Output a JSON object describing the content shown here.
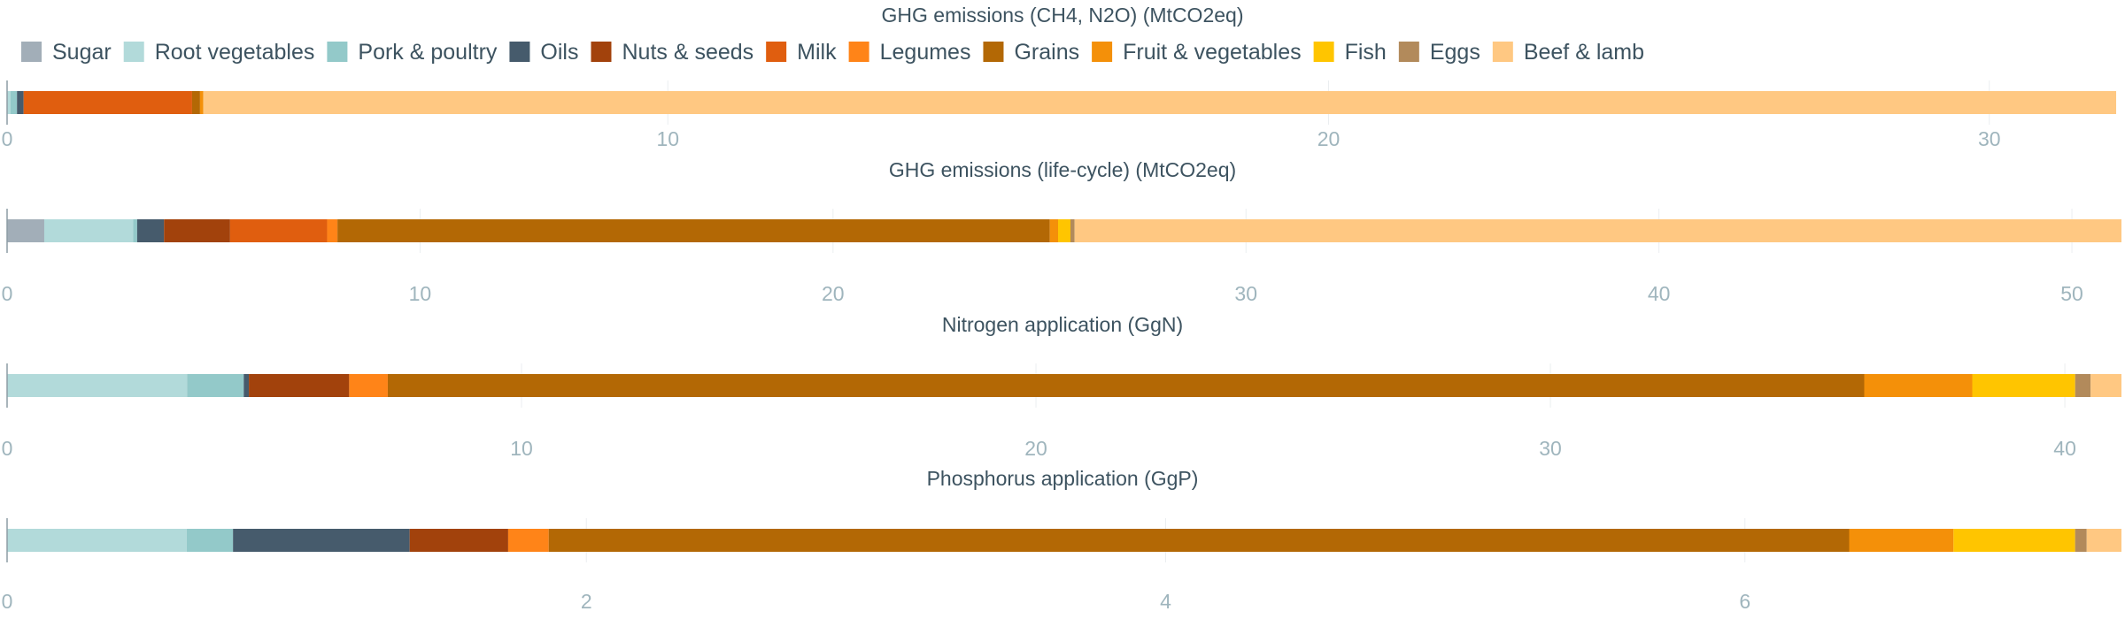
{
  "legend": [
    {
      "name": "Sugar",
      "color": "#a2aeb8"
    },
    {
      "name": "Root vegetables",
      "color": "#b2dada"
    },
    {
      "name": "Pork & poultry",
      "color": "#93c9c9"
    },
    {
      "name": "Oils",
      "color": "#465b6c"
    },
    {
      "name": "Nuts & seeds",
      "color": "#a2420c"
    },
    {
      "name": "Milk",
      "color": "#e05e0f"
    },
    {
      "name": "Legumes",
      "color": "#ff8418"
    },
    {
      "name": "Grains",
      "color": "#b36805"
    },
    {
      "name": "Fruit & vegetables",
      "color": "#f49009"
    },
    {
      "name": "Fish",
      "color": "#ffc500"
    },
    {
      "name": "Eggs",
      "color": "#b28a5b"
    },
    {
      "name": "Beef & lamb",
      "color": "#ffc882"
    }
  ],
  "chart_data": [
    {
      "type": "bar",
      "orientation": "horizontal",
      "stacked": true,
      "title": "GHG emissions (CH4, N2O) (MtCO2eq)",
      "xlim": [
        0,
        32
      ],
      "xticks": [
        0,
        10,
        20,
        30
      ],
      "grid": true,
      "segments": [
        {
          "name": "Sugar",
          "value": 0.0
        },
        {
          "name": "Root vegetables",
          "value": 0.05
        },
        {
          "name": "Pork & poultry",
          "value": 0.1
        },
        {
          "name": "Oils",
          "value": 0.1
        },
        {
          "name": "Nuts & seeds",
          "value": 0.0
        },
        {
          "name": "Milk",
          "value": 2.55
        },
        {
          "name": "Legumes",
          "value": 0.0
        },
        {
          "name": "Grains",
          "value": 0.12
        },
        {
          "name": "Fruit & vegetables",
          "value": 0.05
        },
        {
          "name": "Fish",
          "value": 0.0
        },
        {
          "name": "Eggs",
          "value": 0.0
        },
        {
          "name": "Beef & lamb",
          "value": 28.95
        }
      ]
    },
    {
      "type": "bar",
      "orientation": "horizontal",
      "stacked": true,
      "title": "GHG emissions (life-cycle) (MtCO2eq)",
      "xlim": [
        0,
        51.2
      ],
      "xticks": [
        0,
        10,
        20,
        30,
        40,
        50
      ],
      "grid": true,
      "segments": [
        {
          "name": "Sugar",
          "value": 0.9
        },
        {
          "name": "Root vegetables",
          "value": 2.15
        },
        {
          "name": "Pork & poultry",
          "value": 0.1
        },
        {
          "name": "Oils",
          "value": 0.65
        },
        {
          "name": "Nuts & seeds",
          "value": 1.6
        },
        {
          "name": "Milk",
          "value": 2.35
        },
        {
          "name": "Legumes",
          "value": 0.25
        },
        {
          "name": "Grains",
          "value": 17.25
        },
        {
          "name": "Fruit & vegetables",
          "value": 0.2
        },
        {
          "name": "Fish",
          "value": 0.3
        },
        {
          "name": "Eggs",
          "value": 0.1
        },
        {
          "name": "Beef & lamb",
          "value": 25.35
        }
      ]
    },
    {
      "type": "bar",
      "orientation": "horizontal",
      "stacked": true,
      "title": "Nitrogen application (GgN)",
      "xlim": [
        0,
        41.1
      ],
      "xticks": [
        0,
        10,
        20,
        30,
        40
      ],
      "grid": true,
      "segments": [
        {
          "name": "Sugar",
          "value": 0.0
        },
        {
          "name": "Root vegetables",
          "value": 3.5
        },
        {
          "name": "Pork & poultry",
          "value": 1.1
        },
        {
          "name": "Oils",
          "value": 0.1
        },
        {
          "name": "Nuts & seeds",
          "value": 1.95
        },
        {
          "name": "Milk",
          "value": 0.0
        },
        {
          "name": "Legumes",
          "value": 0.75
        },
        {
          "name": "Grains",
          "value": 28.7
        },
        {
          "name": "Fruit & vegetables",
          "value": 2.1
        },
        {
          "name": "Fish",
          "value": 2.0
        },
        {
          "name": "Eggs",
          "value": 0.3
        },
        {
          "name": "Beef & lamb",
          "value": 0.6
        }
      ]
    },
    {
      "type": "bar",
      "orientation": "horizontal",
      "stacked": true,
      "title": "Phosphorus application (GgP)",
      "xlim": [
        0,
        7.3
      ],
      "xticks": [
        0,
        2,
        4,
        6
      ],
      "grid": true,
      "segments": [
        {
          "name": "Sugar",
          "value": 0.0
        },
        {
          "name": "Root vegetables",
          "value": 0.62
        },
        {
          "name": "Pork & poultry",
          "value": 0.16
        },
        {
          "name": "Oils",
          "value": 0.61
        },
        {
          "name": "Nuts & seeds",
          "value": 0.34
        },
        {
          "name": "Milk",
          "value": 0.0
        },
        {
          "name": "Legumes",
          "value": 0.14
        },
        {
          "name": "Grains",
          "value": 4.49
        },
        {
          "name": "Fruit & vegetables",
          "value": 0.36
        },
        {
          "name": "Fish",
          "value": 0.42
        },
        {
          "name": "Eggs",
          "value": 0.04
        },
        {
          "name": "Beef & lamb",
          "value": 0.12
        }
      ]
    }
  ]
}
